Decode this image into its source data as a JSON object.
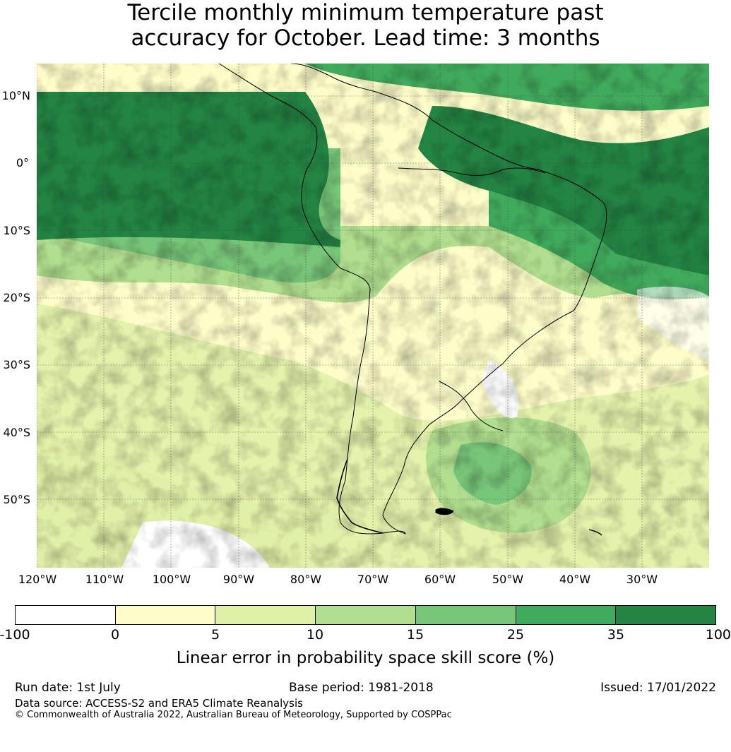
{
  "title": {
    "line1": "Tercile monthly minimum temperature past",
    "line2": "accuracy for October. Lead time: 3 months"
  },
  "map": {
    "lat_labels": [
      "10°N",
      "0°",
      "10°S",
      "20°S",
      "30°S",
      "40°S",
      "50°S"
    ],
    "lon_labels": [
      "120°W",
      "110°W",
      "100°W",
      "90°W",
      "80°W",
      "70°W",
      "60°W",
      "50°W",
      "40°W",
      "30°W"
    ],
    "region": "South America",
    "projection": "equirectangular",
    "extent": {
      "lon": [
        -121.5,
        -21.5
      ],
      "lat": [
        -60,
        15
      ]
    },
    "gridlines": true,
    "coastline_color": "#000000"
  },
  "colorbar": {
    "ticks": [
      "-100",
      "0",
      "5",
      "10",
      "15",
      "25",
      "35",
      "100"
    ],
    "colors": [
      "#ffffff",
      "#fdfdc9",
      "#dff0a7",
      "#b1df8f",
      "#78c679",
      "#41ab5d",
      "#238443"
    ],
    "label": "Linear error in probability space skill score (%)"
  },
  "footer": {
    "run_date": "Run date: 1st July",
    "base_period": "Base period: 1981-2018",
    "issued": "Issued: 17/01/2022",
    "data_source": "Data source: ACCESS-S2 and ERA5 Climate Reanalysis",
    "copyright": "© Commonwealth of Australia 2022, Australian Bureau of Meteorology, Supported by COSPPac"
  }
}
